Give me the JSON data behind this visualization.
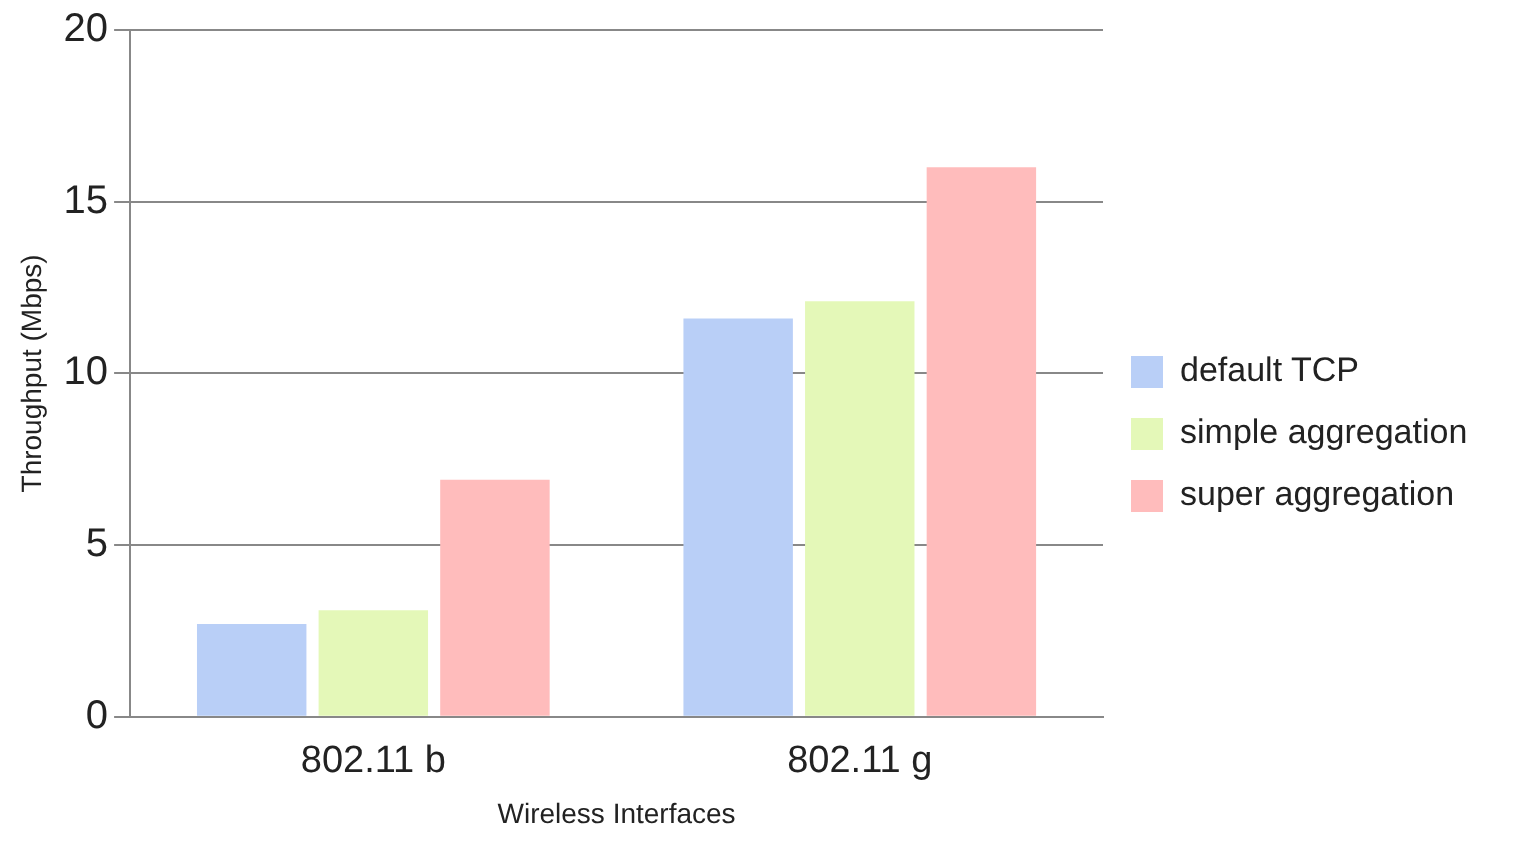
{
  "chart_data": {
    "type": "bar",
    "xlabel": "Wireless Interfaces",
    "ylabel": "Throughput (Mbps)",
    "categories": [
      "802.11 b",
      "802.11 g"
    ],
    "series": [
      {
        "name": "default TCP",
        "color": "#b9cff7",
        "values": [
          2.7,
          11.6
        ]
      },
      {
        "name": "simple aggregation",
        "color": "#e4f8b8",
        "values": [
          3.1,
          12.1
        ]
      },
      {
        "name": "super aggregation",
        "color": "#ffbcbc",
        "values": [
          6.9,
          16.0
        ]
      }
    ],
    "ylim": [
      0,
      20
    ],
    "yticks": [
      0,
      5,
      10,
      15,
      20
    ],
    "grid": "y",
    "legend": "right"
  }
}
